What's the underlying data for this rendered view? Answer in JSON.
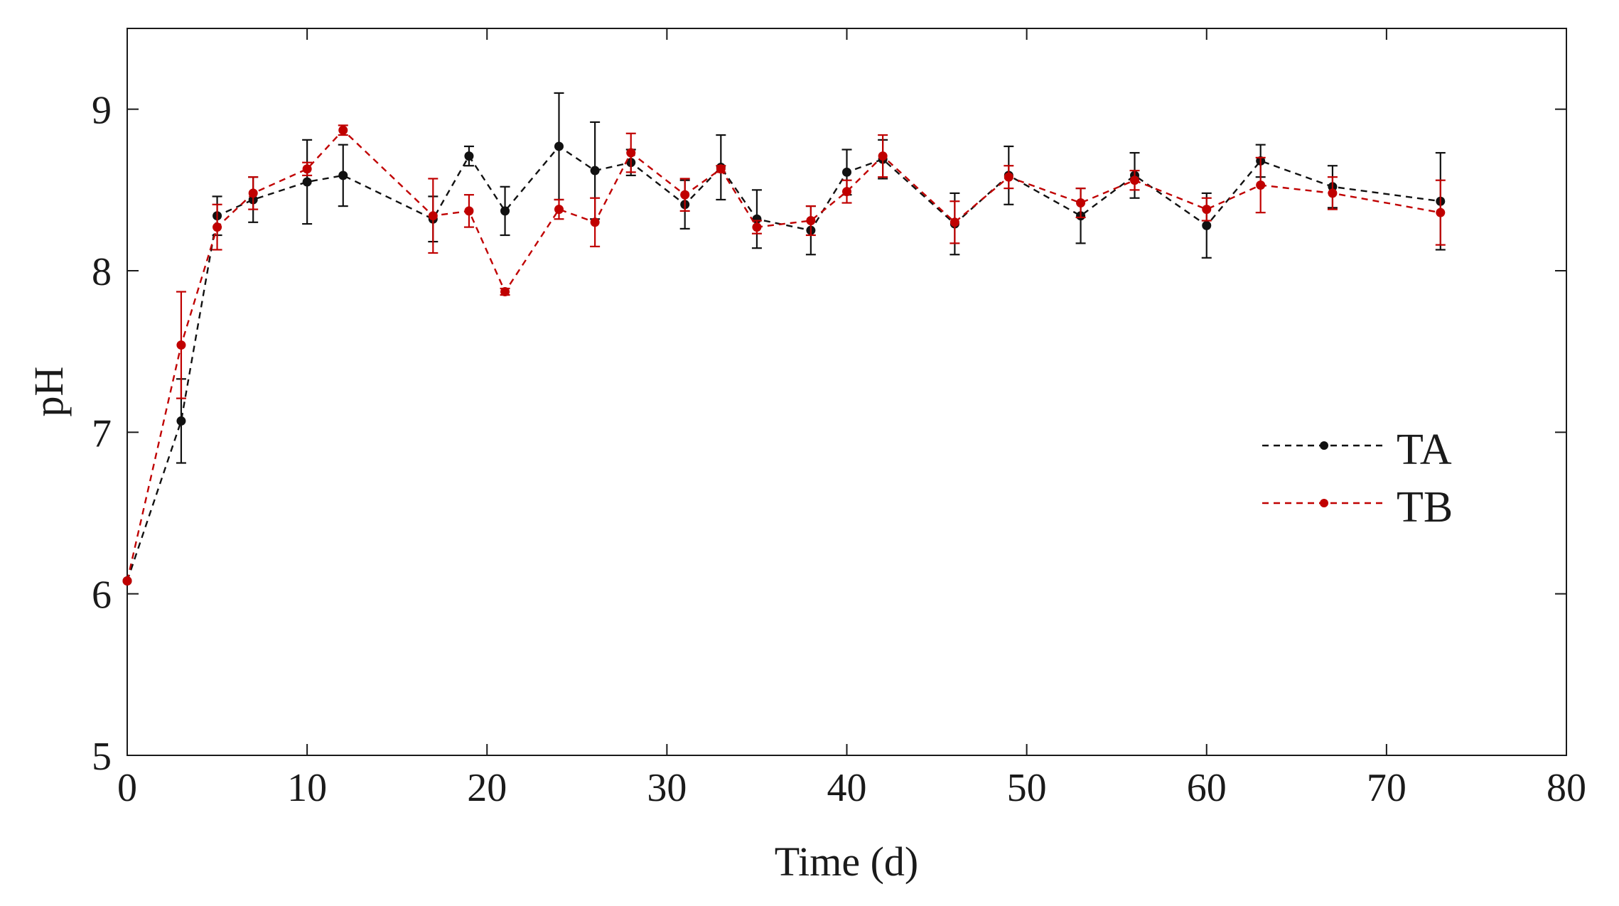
{
  "chart_data": {
    "type": "line",
    "title": "",
    "xlabel": "Time (d)",
    "ylabel": "pH",
    "xlim": [
      0,
      80
    ],
    "ylim": [
      5,
      9.5
    ],
    "xticks": [
      0,
      10,
      20,
      30,
      40,
      50,
      60,
      70,
      80
    ],
    "yticks": [
      5,
      6,
      7,
      8,
      9
    ],
    "grid": false,
    "legend_position": "right",
    "series": [
      {
        "name": "TA",
        "color": "#111111",
        "x": [
          0,
          3,
          5,
          7,
          10,
          12,
          17,
          19,
          21,
          24,
          26,
          28,
          31,
          33,
          35,
          38,
          40,
          42,
          46,
          49,
          53,
          56,
          60,
          63,
          67,
          73
        ],
        "y": [
          6.08,
          7.07,
          8.34,
          8.44,
          8.55,
          8.59,
          8.32,
          8.71,
          8.37,
          8.77,
          8.62,
          8.67,
          8.41,
          8.64,
          8.32,
          8.25,
          8.61,
          8.69,
          8.29,
          8.59,
          8.34,
          8.59,
          8.28,
          8.68,
          8.52,
          8.43
        ],
        "error": [
          0.0,
          0.26,
          0.12,
          0.14,
          0.26,
          0.19,
          0.14,
          0.06,
          0.15,
          0.33,
          0.3,
          0.08,
          0.15,
          0.2,
          0.18,
          0.15,
          0.14,
          0.12,
          0.19,
          0.18,
          0.17,
          0.14,
          0.2,
          0.1,
          0.13,
          0.3
        ]
      },
      {
        "name": "TB",
        "color": "#c00000",
        "x": [
          0,
          3,
          5,
          7,
          10,
          12,
          17,
          19,
          21,
          24,
          26,
          28,
          31,
          33,
          35,
          38,
          40,
          42,
          46,
          49,
          53,
          56,
          60,
          63,
          67,
          73
        ],
        "y": [
          6.08,
          7.54,
          8.27,
          8.48,
          8.63,
          8.87,
          8.34,
          8.37,
          7.87,
          8.38,
          8.3,
          8.73,
          8.47,
          8.63,
          8.27,
          8.31,
          8.49,
          8.71,
          8.3,
          8.58,
          8.42,
          8.56,
          8.38,
          8.53,
          8.48,
          8.36
        ],
        "error": [
          0.0,
          0.33,
          0.14,
          0.1,
          0.04,
          0.03,
          0.23,
          0.1,
          0.02,
          0.06,
          0.15,
          0.12,
          0.1,
          0.02,
          0.04,
          0.09,
          0.07,
          0.13,
          0.13,
          0.07,
          0.09,
          0.06,
          0.07,
          0.17,
          0.1,
          0.2
        ]
      }
    ]
  }
}
